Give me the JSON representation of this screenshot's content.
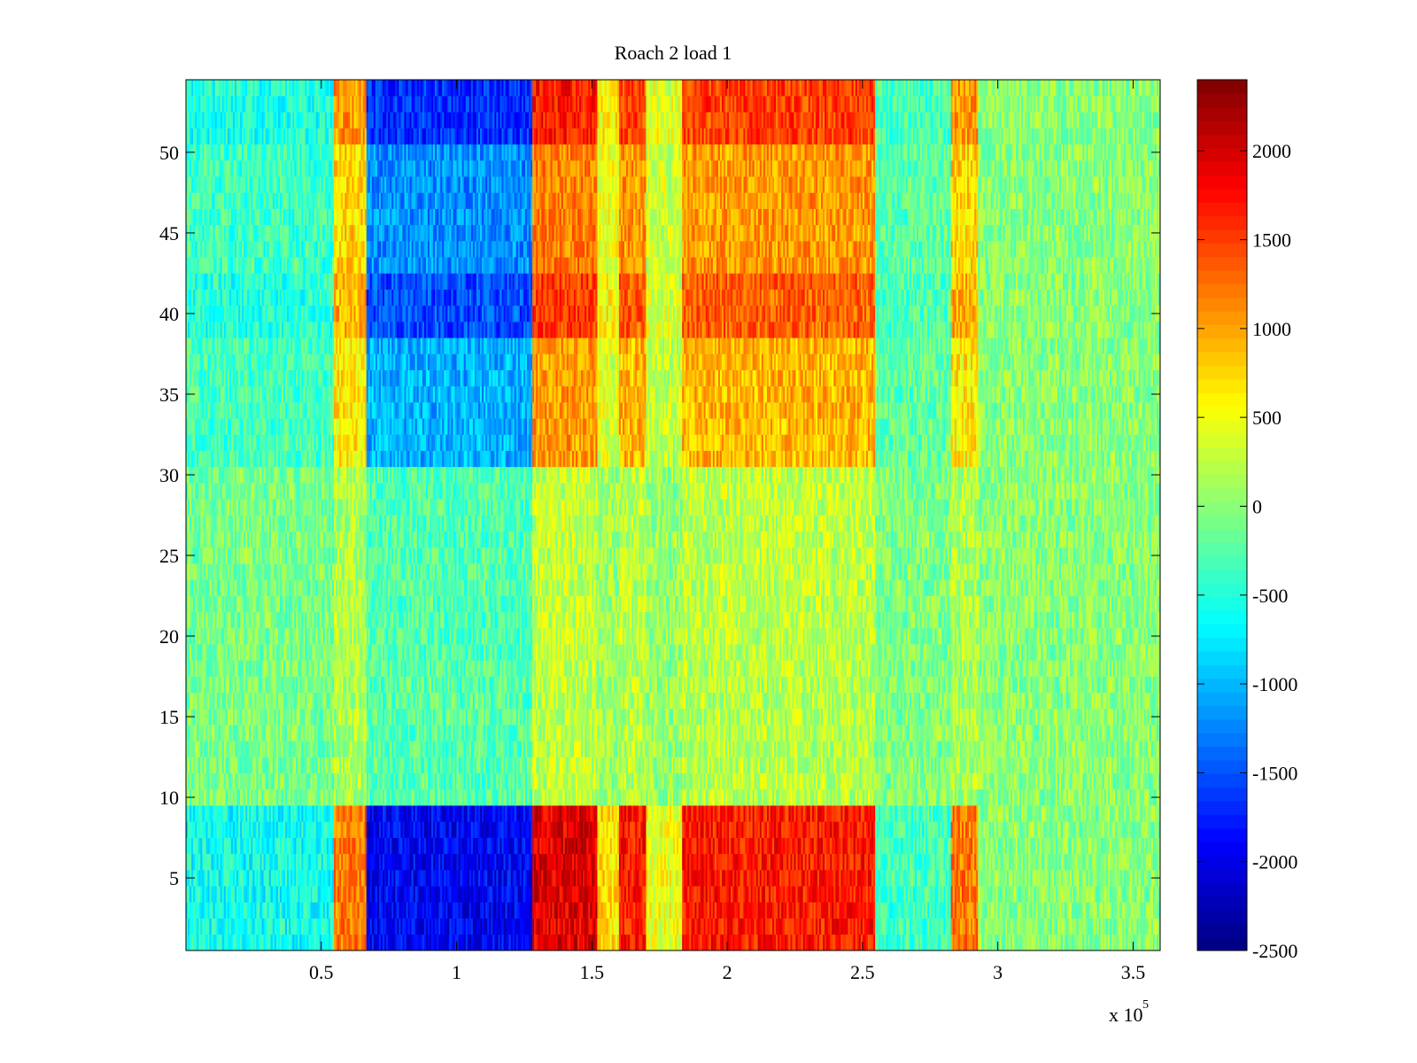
{
  "chart_data": {
    "type": "heatmap",
    "title": "Roach 2 load 1",
    "xlabel": "",
    "ylabel": "",
    "x_range": [
      0,
      3.6
    ],
    "x_ticks": [
      0.5,
      1,
      1.5,
      2,
      2.5,
      3,
      3.5
    ],
    "x_tick_labels": [
      "0.5",
      "1",
      "1.5",
      "2",
      "2.5",
      "3",
      "3.5"
    ],
    "x_multiplier_label": "x 10",
    "x_multiplier_exponent": "5",
    "y_range": [
      0.5,
      54.5
    ],
    "y_ticks": [
      5,
      10,
      15,
      20,
      25,
      30,
      35,
      40,
      45,
      50
    ],
    "y_tick_labels": [
      "5",
      "10",
      "15",
      "20",
      "25",
      "30",
      "35",
      "40",
      "45",
      "50"
    ],
    "colorbar": {
      "range": [
        -2500,
        2400
      ],
      "ticks": [
        2000,
        1500,
        1000,
        500,
        0,
        -500,
        -1000,
        -1500,
        -2000,
        -2500
      ],
      "tick_labels": [
        "2000",
        "1500",
        "1000",
        "500",
        "0",
        "-500",
        "-1000",
        "-1500",
        "-2000",
        "-2500"
      ],
      "colormap": "jet"
    },
    "rows": 54,
    "columns_approx": 540,
    "column_regions": [
      {
        "x_start": 0.0,
        "x_end": 0.55,
        "value": -250
      },
      {
        "x_start": 0.55,
        "x_end": 0.67,
        "value": 500
      },
      {
        "x_start": 0.67,
        "x_end": 1.28,
        "value": -800
      },
      {
        "x_start": 1.28,
        "x_end": 1.52,
        "value": 800
      },
      {
        "x_start": 1.52,
        "x_end": 1.6,
        "value": 300
      },
      {
        "x_start": 1.6,
        "x_end": 1.7,
        "value": 700
      },
      {
        "x_start": 1.7,
        "x_end": 1.83,
        "value": 200
      },
      {
        "x_start": 1.83,
        "x_end": 2.55,
        "value": 700
      },
      {
        "x_start": 2.55,
        "x_end": 2.83,
        "value": -150
      },
      {
        "x_start": 2.83,
        "x_end": 2.93,
        "value": 500
      },
      {
        "x_start": 2.93,
        "x_end": 3.6,
        "value": 0
      }
    ],
    "row_bands": [
      {
        "y_start": 1,
        "y_end": 9,
        "amplify": 2.4,
        "note": "strong bottom band"
      },
      {
        "y_start": 10,
        "y_end": 18,
        "amplify": 0.3,
        "note": "muted band"
      },
      {
        "y_start": 19,
        "y_end": 30,
        "amplify": 0.35,
        "note": "muted band"
      },
      {
        "y_start": 31,
        "y_end": 38,
        "amplify": 1.3
      },
      {
        "y_start": 39,
        "y_end": 42,
        "amplify": 1.9
      },
      {
        "y_start": 43,
        "y_end": 50,
        "amplify": 1.5
      },
      {
        "y_start": 51,
        "y_end": 54,
        "amplify": 2.1
      }
    ]
  }
}
